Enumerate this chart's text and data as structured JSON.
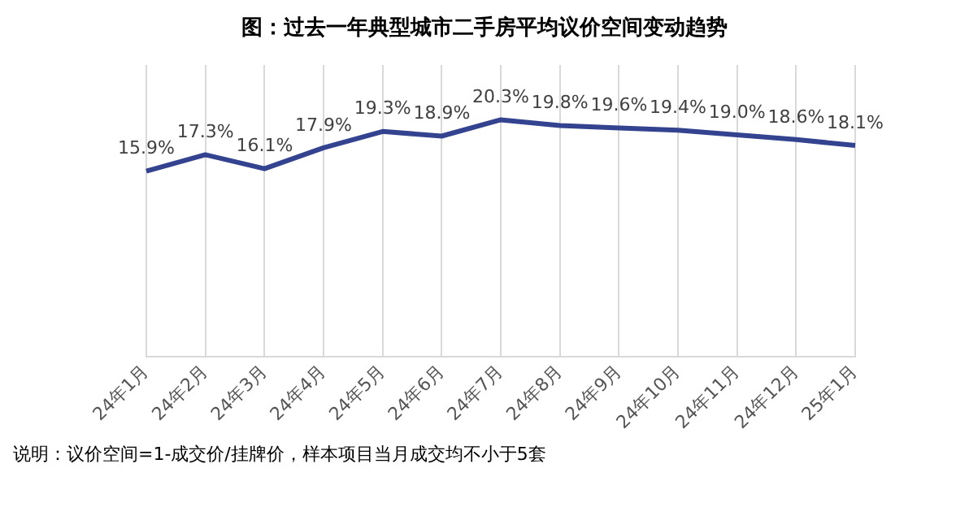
{
  "chart_data": {
    "type": "line",
    "title": "图：过去一年典型城市二手房平均议价空间变动趋势",
    "categories": [
      "24年1月",
      "24年2月",
      "24年3月",
      "24年4月",
      "24年5月",
      "24年6月",
      "24年7月",
      "24年8月",
      "24年9月",
      "24年10月",
      "24年11月",
      "24年12月",
      "25年1月"
    ],
    "series": [
      {
        "color": "#34438f",
        "values": [
          15.9,
          17.3,
          16.1,
          17.9,
          19.3,
          18.9,
          20.3,
          19.8,
          19.6,
          19.4,
          19.0,
          18.6,
          18.1
        ],
        "value_labels": [
          "15.9%",
          "17.3%",
          "16.1%",
          "17.9%",
          "19.3%",
          "18.9%",
          "20.3%",
          "19.8%",
          "19.6%",
          "19.4%",
          "19.0%",
          "18.6%",
          "18.1%"
        ]
      }
    ],
    "ylim": [
      0,
      25
    ],
    "tick_labels": "x",
    "grid": "x",
    "legend": false,
    "marker": "none",
    "line_style": "solid",
    "annotations": [
      "说明：议价空间=1-成交价/挂牌价，样本项目当月成交均不小于5套"
    ]
  }
}
